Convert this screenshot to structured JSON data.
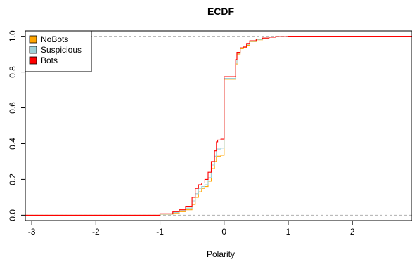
{
  "chart_data": {
    "type": "line",
    "subtype": "ecdf-step",
    "title": "ECDF",
    "xlabel": "Polarity",
    "ylabel": "",
    "xlim": [
      -3.1,
      2.93
    ],
    "ylim": [
      -0.03,
      1.03
    ],
    "x_ticks": [
      -3,
      -2,
      -1,
      0,
      1,
      2
    ],
    "y_ticks": [
      0.0,
      0.2,
      0.4,
      0.6,
      0.8,
      1.0
    ],
    "x_tick_labels": [
      "-3",
      "-2",
      "-1",
      "0",
      "1",
      "2"
    ],
    "y_tick_labels": [
      "0.0",
      "0.2",
      "0.4",
      "0.6",
      "0.8",
      "1.0"
    ],
    "reference_lines": [
      0,
      1
    ],
    "grid": false,
    "legend_position": "top-left",
    "series": [
      {
        "name": "NoBots",
        "color": "#FFA500",
        "points": [
          [
            -3.1,
            0.0
          ],
          [
            -1.1,
            0.0
          ],
          [
            -1.0,
            0.005
          ],
          [
            -0.8,
            0.01
          ],
          [
            -0.7,
            0.02
          ],
          [
            -0.6,
            0.03
          ],
          [
            -0.5,
            0.06
          ],
          [
            -0.45,
            0.1
          ],
          [
            -0.4,
            0.13
          ],
          [
            -0.35,
            0.15
          ],
          [
            -0.3,
            0.16
          ],
          [
            -0.25,
            0.19
          ],
          [
            -0.2,
            0.26
          ],
          [
            -0.15,
            0.3
          ],
          [
            -0.12,
            0.33
          ],
          [
            -0.05,
            0.335
          ],
          [
            0.0,
            0.335
          ],
          [
            0.0,
            0.76
          ],
          [
            0.15,
            0.76
          ],
          [
            0.18,
            0.84
          ],
          [
            0.2,
            0.9
          ],
          [
            0.25,
            0.93
          ],
          [
            0.3,
            0.935
          ],
          [
            0.35,
            0.95
          ],
          [
            0.4,
            0.97
          ],
          [
            0.5,
            0.98
          ],
          [
            0.6,
            0.99
          ],
          [
            0.7,
            0.995
          ],
          [
            0.8,
            0.998
          ],
          [
            1.0,
            1.0
          ],
          [
            2.93,
            1.0
          ]
        ]
      },
      {
        "name": "Suspicious",
        "color": "#9ED0D6",
        "points": [
          [
            -3.1,
            0.0
          ],
          [
            -1.15,
            0.0
          ],
          [
            -1.0,
            0.006
          ],
          [
            -0.8,
            0.015
          ],
          [
            -0.7,
            0.025
          ],
          [
            -0.6,
            0.04
          ],
          [
            -0.5,
            0.08
          ],
          [
            -0.45,
            0.12
          ],
          [
            -0.4,
            0.15
          ],
          [
            -0.35,
            0.16
          ],
          [
            -0.3,
            0.17
          ],
          [
            -0.25,
            0.21
          ],
          [
            -0.2,
            0.28
          ],
          [
            -0.15,
            0.33
          ],
          [
            -0.12,
            0.37
          ],
          [
            -0.05,
            0.375
          ],
          [
            0.0,
            0.375
          ],
          [
            0.0,
            0.765
          ],
          [
            0.15,
            0.765
          ],
          [
            0.18,
            0.85
          ],
          [
            0.2,
            0.905
          ],
          [
            0.25,
            0.935
          ],
          [
            0.3,
            0.94
          ],
          [
            0.35,
            0.955
          ],
          [
            0.4,
            0.972
          ],
          [
            0.5,
            0.982
          ],
          [
            0.6,
            0.99
          ],
          [
            0.7,
            0.995
          ],
          [
            0.8,
            0.998
          ],
          [
            1.0,
            1.0
          ],
          [
            2.93,
            1.0
          ]
        ]
      },
      {
        "name": "Bots",
        "color": "#FF0000",
        "points": [
          [
            -3.1,
            0.0
          ],
          [
            -1.2,
            0.0
          ],
          [
            -1.0,
            0.008
          ],
          [
            -0.8,
            0.02
          ],
          [
            -0.7,
            0.03
          ],
          [
            -0.6,
            0.05
          ],
          [
            -0.5,
            0.1
          ],
          [
            -0.45,
            0.15
          ],
          [
            -0.4,
            0.17
          ],
          [
            -0.35,
            0.18
          ],
          [
            -0.3,
            0.2
          ],
          [
            -0.25,
            0.24
          ],
          [
            -0.2,
            0.3
          ],
          [
            -0.15,
            0.36
          ],
          [
            -0.12,
            0.41
          ],
          [
            -0.1,
            0.42
          ],
          [
            -0.05,
            0.425
          ],
          [
            0.0,
            0.43
          ],
          [
            0.0,
            0.775
          ],
          [
            0.15,
            0.775
          ],
          [
            0.18,
            0.87
          ],
          [
            0.2,
            0.91
          ],
          [
            0.25,
            0.935
          ],
          [
            0.3,
            0.94
          ],
          [
            0.35,
            0.96
          ],
          [
            0.4,
            0.975
          ],
          [
            0.5,
            0.985
          ],
          [
            0.6,
            0.99
          ],
          [
            0.7,
            0.995
          ],
          [
            0.8,
            0.998
          ],
          [
            1.0,
            1.0
          ],
          [
            2.93,
            1.0
          ]
        ]
      }
    ]
  }
}
